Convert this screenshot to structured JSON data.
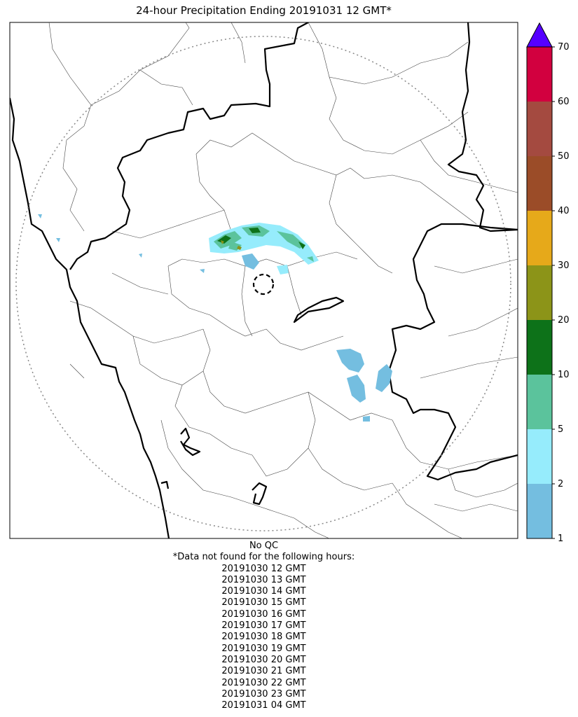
{
  "title": "24-hour Precipitation Ending 20191031 12 GMT*",
  "colorbar": {
    "labels": [
      "1",
      "2",
      "5",
      "10",
      "20",
      "30",
      "40",
      "50",
      "60",
      "70"
    ],
    "bin_colors": [
      "#74bee0",
      "#96ecfc",
      "#5bc39c",
      "#0d7219",
      "#8c9418",
      "#e6a91a",
      "#9b4c28",
      "#a44a40",
      "#d2003f"
    ],
    "extend_color": "#5500ff"
  },
  "qc_label": "No QC",
  "missing_header": "*Data not found for the following hours:",
  "missing_hours": [
    "20191030 12 GMT",
    "20191030 13 GMT",
    "20191030 14 GMT",
    "20191030 15 GMT",
    "20191030 16 GMT",
    "20191030 17 GMT",
    "20191030 18 GMT",
    "20191030 19 GMT",
    "20191030 20 GMT",
    "20191030 21 GMT",
    "20191030 22 GMT",
    "20191030 23 GMT",
    "20191031 04 GMT"
  ]
}
